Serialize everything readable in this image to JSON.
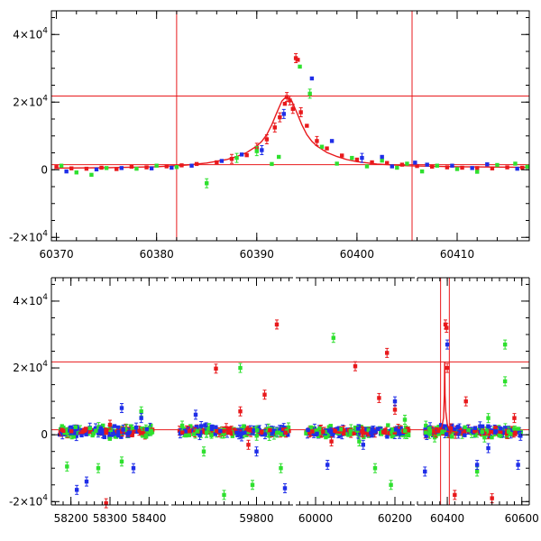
{
  "figure": {
    "title": "",
    "caption": ""
  },
  "colors": {
    "red": "#e8191c",
    "green": "#2ee02e",
    "blue": "#1f2ee8",
    "frame": "#000000"
  },
  "chart_data": [
    {
      "type": "scatter",
      "panel": "top",
      "xlabel": "",
      "ylabel": "",
      "xlim": [
        60369.5,
        60417.2
      ],
      "ylim": [
        -21000,
        47000
      ],
      "grid": false,
      "xticks": [
        60370,
        60380,
        60390,
        60400,
        60410
      ],
      "xtick_labels": [
        "60370",
        "60380",
        "60390",
        "60400",
        "60410"
      ],
      "yticks": [
        -20000,
        0,
        20000,
        40000
      ],
      "ytick_labels": [
        {
          "base": "-2×10",
          "exp": "4"
        },
        {
          "base": "0",
          "exp": ""
        },
        {
          "base": "2×10",
          "exp": "4"
        },
        {
          "base": "4×10",
          "exp": "4"
        }
      ],
      "ref_lines": {
        "horizontal": [
          1500,
          21800
        ],
        "vertical": [
          60382.0,
          60405.5
        ]
      },
      "model_curve": {
        "name": "",
        "x": [
          60370,
          60375,
          60380,
          60383,
          60385,
          60387,
          60388,
          60389,
          60390,
          60390.5,
          60391,
          60391.5,
          60392,
          60392.5,
          60393,
          60393.5,
          60394,
          60394.5,
          60395,
          60395.5,
          60396,
          60397,
          60398,
          60399,
          60400,
          60402,
          60405,
          60410,
          60417
        ],
        "y": [
          500,
          600,
          900,
          1400,
          2000,
          3000,
          3900,
          5100,
          7000,
          8400,
          10400,
          13300,
          16900,
          20300,
          21800,
          20300,
          16900,
          13300,
          10400,
          8400,
          7000,
          5100,
          3900,
          3000,
          2400,
          1700,
          1200,
          900,
          700
        ]
      },
      "series": [
        {
          "color": "red",
          "points": [
            [
              60370,
              800
            ],
            [
              60371.5,
              400
            ],
            [
              60373,
              300
            ],
            [
              60374.5,
              600
            ],
            [
              60376,
              200
            ],
            [
              60377.5,
              900
            ],
            [
              60379,
              700
            ],
            [
              60381,
              1000
            ],
            [
              60382.5,
              1300
            ],
            [
              60384,
              1700
            ],
            [
              60386,
              2200
            ],
            [
              60387.5,
              3200
            ],
            [
              60389,
              4300
            ],
            [
              60390,
              6500
            ],
            [
              60391,
              9000
            ],
            [
              60391.8,
              12500
            ],
            [
              60392.3,
              15500
            ],
            [
              60392.8,
              19500
            ],
            [
              60393,
              21500
            ],
            [
              60393.3,
              20500
            ],
            [
              60393.6,
              18000
            ],
            [
              60393.9,
              33000
            ],
            [
              60394.1,
              32500
            ],
            [
              60394.4,
              17000
            ],
            [
              60395,
              13000
            ],
            [
              60396,
              8500
            ],
            [
              60397,
              6300
            ],
            [
              60398.5,
              4200
            ],
            [
              60400,
              3000
            ],
            [
              60401.5,
              2200
            ],
            [
              60403,
              2000
            ],
            [
              60404.5,
              1500
            ],
            [
              60406,
              1100
            ],
            [
              60407.5,
              900
            ],
            [
              60409,
              700
            ],
            [
              60410.5,
              600
            ],
            [
              60412,
              500
            ],
            [
              60413.5,
              400
            ],
            [
              60415,
              700
            ],
            [
              60416.5,
              600
            ]
          ]
        },
        {
          "color": "green",
          "points": [
            [
              60370.5,
              1200
            ],
            [
              60372,
              -800
            ],
            [
              60373.5,
              -1500
            ],
            [
              60375,
              500
            ],
            [
              60378,
              300
            ],
            [
              60380,
              1200
            ],
            [
              60382,
              800
            ],
            [
              60385,
              -4000
            ],
            [
              60388,
              3500
            ],
            [
              60390,
              5500
            ],
            [
              60391.5,
              1700
            ],
            [
              60392.2,
              3800
            ],
            [
              60394.3,
              30500
            ],
            [
              60395.3,
              22500
            ],
            [
              60396.5,
              6800
            ],
            [
              60398,
              1800
            ],
            [
              60399.5,
              3500
            ],
            [
              60401,
              1000
            ],
            [
              60402.5,
              2700
            ],
            [
              60404,
              600
            ],
            [
              60405,
              1800
            ],
            [
              60406.5,
              -500
            ],
            [
              60408,
              1200
            ],
            [
              60410,
              200
            ],
            [
              60412,
              -600
            ],
            [
              60414,
              1400
            ],
            [
              60415.8,
              1800
            ],
            [
              60417,
              900
            ]
          ]
        },
        {
          "color": "blue",
          "points": [
            [
              60371,
              -500
            ],
            [
              60374,
              100
            ],
            [
              60376.5,
              500
            ],
            [
              60379.5,
              400
            ],
            [
              60381.5,
              600
            ],
            [
              60383.5,
              1200
            ],
            [
              60386.5,
              2600
            ],
            [
              60388.5,
              4500
            ],
            [
              60390.5,
              5800
            ],
            [
              60392.7,
              16500
            ],
            [
              60395.5,
              27000
            ],
            [
              60397.5,
              8500
            ],
            [
              60400.5,
              3500
            ],
            [
              60402.5,
              3800
            ],
            [
              60403.5,
              1000
            ],
            [
              60405.8,
              2100
            ],
            [
              60407,
              1500
            ],
            [
              60409.5,
              1200
            ],
            [
              60411.5,
              500
            ],
            [
              60413,
              1600
            ],
            [
              60416,
              300
            ]
          ]
        }
      ]
    },
    {
      "type": "scatter",
      "panel": "bottom",
      "xlabel": "",
      "ylabel": "",
      "ylim": [
        -21000,
        47000
      ],
      "grid": false,
      "segments": [
        {
          "xlim": [
            58150,
            58450
          ],
          "xticks": [
            58200,
            58300,
            58400
          ],
          "xtick_labels": [
            "58200",
            "58300",
            "58400"
          ],
          "data_range": [
            58170,
            58410
          ]
        },
        {
          "xlim": [
            59590,
            59890
          ],
          "xticks": [
            59800
          ],
          "xtick_labels": [
            "59800"
          ],
          "data_range": [
            59610,
            59880
          ]
        },
        {
          "xlim": [
            59950,
            60250
          ],
          "xticks": [
            60000,
            60200
          ],
          "xtick_labels": [
            "60000",
            "60200"
          ],
          "data_range": [
            59975,
            60235
          ]
        },
        {
          "xlim": [
            60320,
            60620
          ],
          "xticks": [
            60400,
            60600
          ],
          "xtick_labels": [
            "60400",
            "60600"
          ],
          "data_range": [
            60340,
            60600
          ]
        }
      ],
      "yticks": [
        -20000,
        0,
        20000,
        40000
      ],
      "ytick_labels": [
        {
          "base": "-2×10",
          "exp": "4"
        },
        {
          "base": "0",
          "exp": ""
        },
        {
          "base": "2×10",
          "exp": "4"
        },
        {
          "base": "4×10",
          "exp": "4"
        }
      ],
      "ref_lines": {
        "horizontal": [
          1500,
          21800
        ],
        "vertical": [
          60382.0,
          60405.5
        ]
      },
      "flare": {
        "x": [
          60360,
          60370,
          60380,
          60385,
          60390,
          60392,
          60393,
          60394,
          60396,
          60400,
          60405,
          60415,
          60430
        ],
        "y": [
          600,
          900,
          1500,
          2200,
          5000,
          12000,
          21800,
          12000,
          7000,
          3000,
          1700,
          1000,
          700
        ]
      },
      "series": [
        {
          "color": "red",
          "outliers": [
            [
              58290,
              -20500
            ],
            [
              58300,
              3000
            ],
            [
              59700,
              19800
            ],
            [
              59760,
              7000
            ],
            [
              59820,
              12000
            ],
            [
              59850,
              33000
            ],
            [
              59780,
              -3000
            ],
            [
              60100,
              20500
            ],
            [
              60160,
              11000
            ],
            [
              60180,
              24500
            ],
            [
              60200,
              7500
            ],
            [
              60040,
              -2000
            ],
            [
              60395,
              33000
            ],
            [
              60398,
              32000
            ],
            [
              60400,
              20000
            ],
            [
              60420,
              -18000
            ],
            [
              60450,
              10000
            ],
            [
              60520,
              -19000
            ],
            [
              60580,
              5000
            ]
          ]
        },
        {
          "color": "green",
          "outliers": [
            [
              58190,
              -9500
            ],
            [
              58270,
              -10000
            ],
            [
              58330,
              -8000
            ],
            [
              58380,
              7000
            ],
            [
              59670,
              -5000
            ],
            [
              59720,
              -18000
            ],
            [
              59760,
              20000
            ],
            [
              59790,
              -15000
            ],
            [
              59860,
              -10000
            ],
            [
              60045,
              29000
            ],
            [
              60110,
              -2000
            ],
            [
              60150,
              -10000
            ],
            [
              60190,
              -15000
            ],
            [
              60225,
              4500
            ],
            [
              60480,
              -11000
            ],
            [
              60555,
              27000
            ],
            [
              60555,
              16000
            ],
            [
              60510,
              5000
            ]
          ]
        },
        {
          "color": "blue",
          "outliers": [
            [
              58215,
              -16500
            ],
            [
              58240,
              -14000
            ],
            [
              58330,
              8000
            ],
            [
              58360,
              -10000
            ],
            [
              58380,
              5000
            ],
            [
              59650,
              6000
            ],
            [
              59800,
              -5000
            ],
            [
              59870,
              -16000
            ],
            [
              60030,
              -9000
            ],
            [
              60120,
              -3000
            ],
            [
              60200,
              10000
            ],
            [
              60340,
              -11000
            ],
            [
              60400,
              27000
            ],
            [
              60480,
              -9000
            ],
            [
              60510,
              -4000
            ],
            [
              60590,
              -9000
            ]
          ]
        }
      ]
    }
  ]
}
